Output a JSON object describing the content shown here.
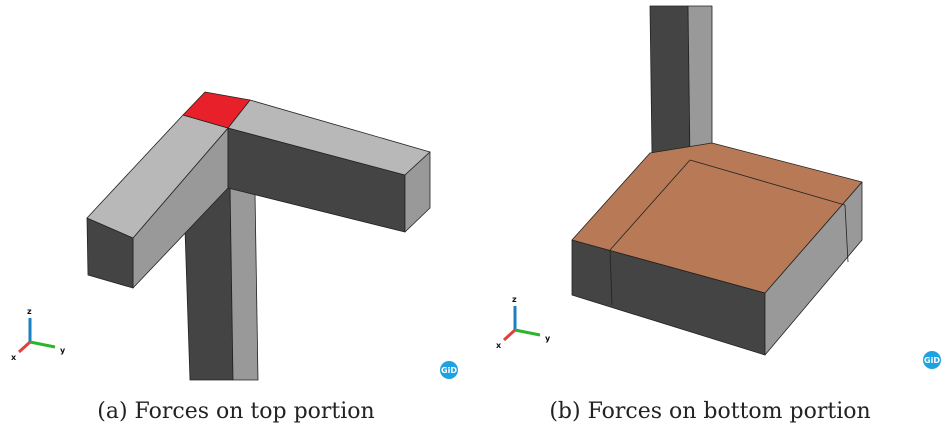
{
  "figures": [
    {
      "caption": "(a) Forces on top portion",
      "axes": {
        "x": "x",
        "y": "y",
        "z": "z"
      },
      "logo": "GiD"
    },
    {
      "caption": "(b) Forces on bottom portion",
      "axes": {
        "x": "x",
        "y": "y",
        "z": "z"
      },
      "logo": "GiD"
    }
  ]
}
